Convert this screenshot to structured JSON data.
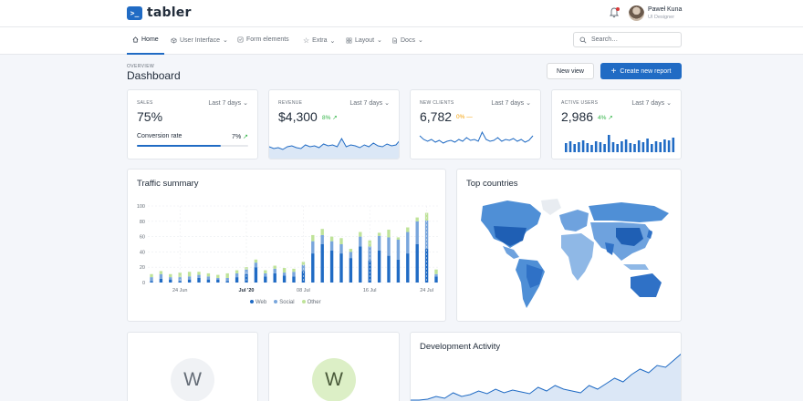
{
  "brand": {
    "logo_glyph": ">_",
    "name": "tabler"
  },
  "user": {
    "name": "Paweł Kuna",
    "role": "UI Designer"
  },
  "nav": {
    "items": [
      {
        "label": "Home",
        "icon": "home-icon"
      },
      {
        "label": "User Interface",
        "icon": "package-icon"
      },
      {
        "label": "Form elements",
        "icon": "checkbox-icon"
      },
      {
        "label": "Extra",
        "icon": "star-icon"
      },
      {
        "label": "Layout",
        "icon": "layout-icon"
      },
      {
        "label": "Docs",
        "icon": "file-icon"
      }
    ],
    "search_placeholder": "Search…"
  },
  "header": {
    "pretitle": "OVERVIEW",
    "title": "Dashboard",
    "new_view_label": "New view",
    "create_report_label": "Create new report"
  },
  "stats": [
    {
      "label": "SALES",
      "range": "Last 7 days",
      "value": "75%",
      "conversion_label": "Conversion rate",
      "conversion_value": "7%",
      "conversion_fraction": 0.75
    },
    {
      "label": "REVENUE",
      "range": "Last 7 days",
      "value": "$4,300",
      "delta": "8%",
      "trend": "up"
    },
    {
      "label": "NEW CLIENTS",
      "range": "Last 7 days",
      "value": "6,782",
      "delta": "0%",
      "trend": "flat"
    },
    {
      "label": "ACTIVE USERS",
      "range": "Last 7 days",
      "value": "2,986",
      "delta": "4%",
      "trend": "up"
    }
  ],
  "traffic": {
    "title": "Traffic summary",
    "legend": [
      "Web",
      "Social",
      "Other"
    ],
    "colors": {
      "Web": "#206bc4",
      "Social": "#79a6dc",
      "Other": "#bfe399"
    }
  },
  "countries": {
    "title": "Top countries",
    "zoom_in": "+",
    "zoom_out": "−"
  },
  "bottom": {
    "avatar1": "W",
    "avatar2": "W",
    "dev_title": "Development Activity"
  },
  "chart_data": {
    "type": "bar",
    "title": "Traffic summary",
    "x_tick_labels": [
      "24 Jun",
      "Jul '20",
      "08 Jul",
      "16 Jul",
      "24 Jul"
    ],
    "ylim": [
      0,
      100
    ],
    "y_ticks": [
      0,
      20,
      40,
      60,
      80,
      100
    ],
    "stacked": true,
    "series": [
      {
        "name": "Web",
        "values": [
          2,
          5,
          4,
          2,
          4,
          6,
          4,
          4,
          2,
          7,
          11,
          20,
          8,
          12,
          9,
          8,
          15,
          38,
          50,
          42,
          38,
          32,
          47,
          29,
          42,
          35,
          30,
          38,
          50,
          44,
          8
        ]
      },
      {
        "name": "Social",
        "values": [
          5,
          6,
          3,
          5,
          4,
          4,
          4,
          2,
          4,
          5,
          6,
          6,
          4,
          6,
          4,
          6,
          8,
          16,
          12,
          12,
          12,
          8,
          13,
          18,
          19,
          24,
          26,
          28,
          30,
          37,
          3
        ]
      },
      {
        "name": "Other",
        "values": [
          4,
          4,
          4,
          6,
          6,
          4,
          4,
          4,
          6,
          4,
          3,
          4,
          4,
          4,
          6,
          4,
          4,
          8,
          8,
          6,
          8,
          4,
          6,
          8,
          4,
          10,
          3,
          6,
          5,
          10,
          6
        ]
      }
    ]
  }
}
